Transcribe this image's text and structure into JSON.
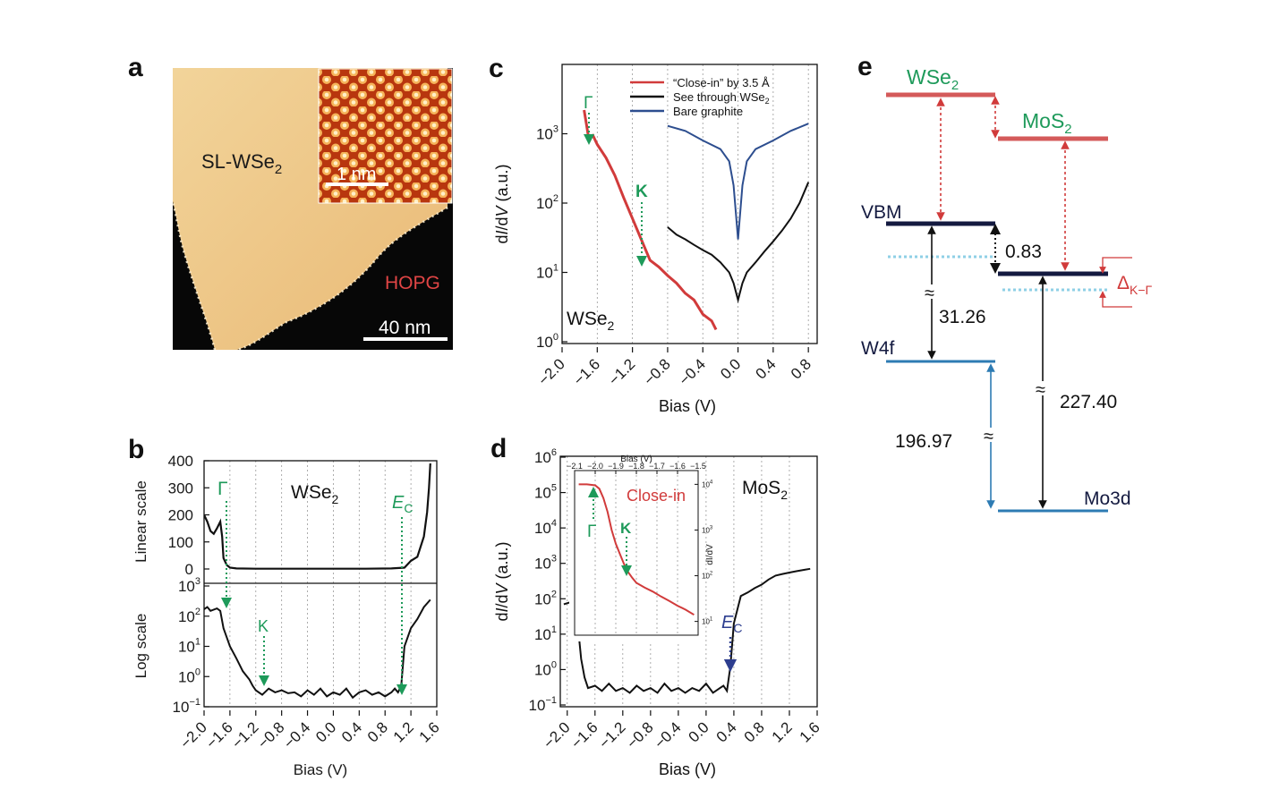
{
  "panels": {
    "a": {
      "label": "a",
      "sample_label": "SL-WSe",
      "sample_sub": "2",
      "substrate_label": "HOPG",
      "scalebar_main": "40 nm",
      "scalebar_inset": "1 nm"
    },
    "b": {
      "label": "b",
      "material": "WSe",
      "material_sub": "2",
      "ylabel_top": "Linear scale",
      "ylabel_bottom": "Log scale",
      "xlabel": "Bias (V)",
      "marker_gamma": "Γ",
      "marker_k": "K",
      "marker_ec": "E",
      "marker_ec_sub": "C"
    },
    "c": {
      "label": "c",
      "material": "WSe",
      "material_sub": "2",
      "xlabel": "Bias (V)",
      "ylabel_a": "d",
      "ylabel_b": "I",
      "ylabel_c": "/d",
      "ylabel_d": "V",
      "ylabel_e": " (a.u.)",
      "legend": [
        {
          "text": "“Close-in” by 3.5 Å",
          "sub": "",
          "color": "#d13b3b"
        },
        {
          "text": "See through WSe",
          "sub": "2",
          "color": "#111111"
        },
        {
          "text": "Bare graphite",
          "sub": "",
          "color": "#2d4e8f"
        }
      ],
      "marker_gamma": "Γ",
      "marker_k": "K"
    },
    "d": {
      "label": "d",
      "material": "MoS",
      "material_sub": "2",
      "xlabel": "Bias (V)",
      "ylabel_a": "d",
      "ylabel_b": "I",
      "ylabel_c": "/d",
      "ylabel_d": "V",
      "ylabel_e": " (a.u.)",
      "inset_title": "Bias (V)",
      "inset_ylabel": "dI/dV",
      "inset_curve_label": "Close-in",
      "marker_gamma": "Γ",
      "marker_k": "K",
      "marker_ec": "E",
      "marker_ec_sub": "C"
    },
    "e": {
      "label": "e",
      "wse2": "WSe",
      "wse2_sub": "2",
      "mos2": "MoS",
      "mos2_sub": "2",
      "vbm": "VBM",
      "w4f": "W4f",
      "mo3d": "Mo3d",
      "val_083": "0.83",
      "val_3126": "31.26",
      "val_19697": "196.97",
      "val_22740": "227.40",
      "approx": "≈",
      "delta": "Δ",
      "delta_sub": "K−Γ"
    }
  },
  "colors": {
    "red": "#d13b3b",
    "green": "#1e9a5a",
    "navy": "#141a40",
    "blue": "#2d7bb3",
    "lightblue": "#8fd0e6",
    "graphite": "#2d4e8f"
  },
  "chart_data": [
    {
      "panel": "b-top",
      "type": "line",
      "ylabel": "Linear scale",
      "ylim": [
        0,
        400
      ],
      "yticks": [
        "400",
        "300",
        "200",
        "100",
        "0"
      ],
      "series": [
        {
          "x": [
            -2.0,
            -1.95,
            -1.9,
            -1.85,
            -1.8,
            -1.75,
            -1.72,
            -1.7,
            -1.65,
            -1.6,
            -1.5,
            -1.2,
            -0.5,
            0.5,
            0.9,
            1.1,
            1.2,
            1.3,
            1.4,
            1.45,
            1.48,
            1.5
          ],
          "y": [
            200,
            175,
            140,
            130,
            150,
            175,
            120,
            40,
            15,
            5,
            2,
            1,
            1,
            1,
            2,
            5,
            30,
            45,
            120,
            210,
            300,
            390
          ]
        }
      ]
    },
    {
      "panel": "b-bottom",
      "type": "line",
      "ylabel": "Log scale",
      "xlabel": "Bias (V)",
      "ylim": [
        0.1,
        1000
      ],
      "xlim": [
        -2.0,
        1.6
      ],
      "yticks": [
        "10",
        "10",
        "10",
        "10",
        "10"
      ],
      "yexp": [
        "3",
        "2",
        "1",
        "0",
        "−1"
      ],
      "xticks": [
        "−2.0",
        "−1.6",
        "−1.2",
        "−0.8",
        "−0.4",
        "0.0",
        "0.4",
        "0.8",
        "1.2",
        "1.6"
      ],
      "series": [
        {
          "x": [
            -2.0,
            -1.95,
            -1.9,
            -1.8,
            -1.75,
            -1.7,
            -1.65,
            -1.6,
            -1.5,
            -1.4,
            -1.3,
            -1.25,
            -1.2,
            -1.1,
            -1.0,
            -0.9,
            -0.8,
            -0.7,
            -0.6,
            -0.5,
            -0.4,
            -0.3,
            -0.2,
            -0.1,
            0.0,
            0.1,
            0.2,
            0.3,
            0.4,
            0.5,
            0.6,
            0.7,
            0.8,
            0.9,
            0.95,
            1.0,
            1.05,
            1.1,
            1.2,
            1.3,
            1.4,
            1.5
          ],
          "y": [
            170,
            200,
            150,
            180,
            150,
            40,
            20,
            10,
            4,
            1.5,
            0.8,
            0.5,
            0.35,
            0.25,
            0.4,
            0.3,
            0.35,
            0.28,
            0.3,
            0.22,
            0.35,
            0.25,
            0.4,
            0.22,
            0.3,
            0.25,
            0.4,
            0.2,
            0.3,
            0.35,
            0.25,
            0.3,
            0.22,
            0.3,
            0.4,
            0.3,
            0.5,
            10,
            40,
            80,
            200,
            350
          ]
        }
      ]
    },
    {
      "panel": "c",
      "type": "line",
      "xlabel": "Bias (V)",
      "xlim": [
        -2.0,
        0.9
      ],
      "ylim": [
        1,
        10000
      ],
      "yscale": "log",
      "xticks": [
        "−2.0",
        "−1.6",
        "−1.2",
        "−0.8",
        "−0.4",
        "0.0",
        "0.4",
        "0.8"
      ],
      "yticks": [
        "10",
        "10",
        "10",
        "10"
      ],
      "yexp": [
        "0",
        "1",
        "2",
        "3"
      ],
      "series": [
        {
          "name": "“Close-in” by 3.5 Å",
          "x": [
            -1.75,
            -1.7,
            -1.65,
            -1.6,
            -1.5,
            -1.4,
            -1.3,
            -1.2,
            -1.1,
            -1.0,
            -0.9,
            -0.8,
            -0.7,
            -0.6,
            -0.5,
            -0.4,
            -0.3,
            -0.25
          ],
          "y": [
            2200,
            900,
            950,
            700,
            450,
            250,
            120,
            60,
            30,
            15,
            12,
            9,
            7,
            5,
            4,
            2.5,
            2,
            1.5
          ]
        },
        {
          "name": "See through WSe2",
          "x": [
            -0.8,
            -0.7,
            -0.6,
            -0.5,
            -0.4,
            -0.3,
            -0.2,
            -0.1,
            -0.05,
            0.0,
            0.05,
            0.1,
            0.2,
            0.3,
            0.4,
            0.5,
            0.6,
            0.7,
            0.8
          ],
          "y": [
            45,
            35,
            30,
            25,
            21,
            18,
            14,
            10,
            7,
            4,
            7,
            10,
            14,
            20,
            28,
            40,
            60,
            100,
            200
          ]
        },
        {
          "name": "Bare graphite",
          "x": [
            -0.8,
            -0.6,
            -0.4,
            -0.2,
            -0.1,
            -0.05,
            0.0,
            0.05,
            0.1,
            0.2,
            0.4,
            0.6,
            0.8
          ],
          "y": [
            1300,
            1100,
            800,
            600,
            400,
            180,
            30,
            180,
            400,
            600,
            800,
            1100,
            1400
          ]
        }
      ]
    },
    {
      "panel": "d",
      "type": "line",
      "xlabel": "Bias (V)",
      "xlim": [
        -2.1,
        1.6
      ],
      "ylim": [
        0.1,
        1000000
      ],
      "yscale": "log",
      "xticks": [
        "−2.0",
        "−1.6",
        "−1.2",
        "−0.8",
        "−0.4",
        "0.0",
        "0.4",
        "0.8",
        "1.2",
        "1.6"
      ],
      "yticks": [
        "10",
        "10",
        "10",
        "10",
        "10",
        "10",
        "10",
        "10"
      ],
      "yexp": [
        "−1",
        "0",
        "1",
        "2",
        "3",
        "4",
        "5",
        "6"
      ],
      "series": [
        {
          "x": [
            -2.05,
            -1.95,
            -1.9,
            -1.85,
            -1.8,
            -1.75,
            -1.7,
            -1.6,
            -1.5,
            -1.4,
            -1.3,
            -1.2,
            -1.1,
            -1.0,
            -0.9,
            -0.8,
            -0.7,
            -0.6,
            -0.5,
            -0.4,
            -0.3,
            -0.2,
            -0.1,
            0.0,
            0.1,
            0.2,
            0.25,
            0.3,
            0.35,
            0.4,
            0.5,
            0.6,
            0.7,
            0.8,
            0.9,
            1.0,
            1.1,
            1.2,
            1.3,
            1.4,
            1.5
          ],
          "y": [
            70,
            80,
            60,
            20,
            2,
            0.6,
            0.3,
            0.35,
            0.25,
            0.4,
            0.25,
            0.3,
            0.22,
            0.35,
            0.25,
            0.3,
            0.22,
            0.4,
            0.25,
            0.3,
            0.22,
            0.3,
            0.25,
            0.4,
            0.22,
            0.3,
            0.35,
            0.25,
            1.2,
            20,
            120,
            150,
            200,
            250,
            350,
            450,
            500,
            550,
            600,
            650,
            700
          ]
        }
      ]
    },
    {
      "panel": "d-inset",
      "type": "line",
      "xlabel": "Bias (V)",
      "ylabel": "dI/dV",
      "xlim": [
        -2.1,
        -1.5
      ],
      "ylim": [
        5,
        20000
      ],
      "yscale": "log",
      "xticks": [
        "−2.1",
        "−2.0",
        "−1.9",
        "−1.8",
        "−1.7",
        "−1.6",
        "−1.5"
      ],
      "yticks": [
        "10",
        "10",
        "10",
        "10"
      ],
      "yexp": [
        "4",
        "3",
        "2",
        "1"
      ],
      "series": [
        {
          "name": "Close-in",
          "x": [
            -2.08,
            -2.04,
            -2.0,
            -1.98,
            -1.96,
            -1.94,
            -1.92,
            -1.9,
            -1.88,
            -1.86,
            -1.84,
            -1.82,
            -1.8,
            -1.76,
            -1.72,
            -1.68,
            -1.64,
            -1.6,
            -1.56,
            -1.52
          ],
          "y": [
            10000,
            10000,
            9500,
            8000,
            5000,
            2500,
            1000,
            500,
            300,
            180,
            120,
            90,
            70,
            55,
            45,
            35,
            28,
            22,
            18,
            14
          ]
        }
      ]
    }
  ]
}
